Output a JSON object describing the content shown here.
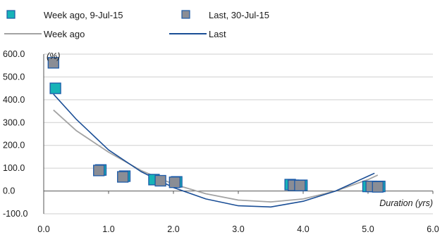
{
  "chart_data": {
    "type": "scatter",
    "title": "",
    "xlabel": "Duration (yrs)",
    "ylabel": "(%)",
    "xlim": [
      0,
      6
    ],
    "ylim": [
      -100,
      600
    ],
    "xticks": [
      0,
      1,
      2,
      3,
      4,
      5,
      6
    ],
    "xtick_labels": [
      "0.0",
      "1.0",
      "2.0",
      "3.0",
      "4.0",
      "5.0",
      "6.0"
    ],
    "yticks": [
      -100,
      0,
      100,
      200,
      300,
      400,
      500,
      600
    ],
    "ytick_labels": [
      "-100.0",
      "0.0",
      "100.0",
      "200.0",
      "300.0",
      "400.0",
      "500.0",
      "600.0"
    ],
    "grid": true,
    "legend_position": "top",
    "scatter_series": [
      {
        "name": "Week ago, 9-Jul-15",
        "color": "#16b3b8",
        "points": [
          {
            "x": 0.18,
            "y": 450
          },
          {
            "x": 0.88,
            "y": 92
          },
          {
            "x": 1.25,
            "y": 65
          },
          {
            "x": 1.7,
            "y": 50
          },
          {
            "x": 2.05,
            "y": 40
          },
          {
            "x": 3.8,
            "y": 28
          },
          {
            "x": 3.98,
            "y": 25
          },
          {
            "x": 5.0,
            "y": 20
          },
          {
            "x": 5.18,
            "y": 20
          }
        ]
      },
      {
        "name": "Last, 30-Jul-15",
        "color": "#8a8d95",
        "points": [
          {
            "x": 0.15,
            "y": 562
          },
          {
            "x": 0.85,
            "y": 90
          },
          {
            "x": 1.22,
            "y": 62
          },
          {
            "x": 1.8,
            "y": 45
          },
          {
            "x": 2.02,
            "y": 38
          },
          {
            "x": 3.85,
            "y": 25
          },
          {
            "x": 3.95,
            "y": 24
          },
          {
            "x": 5.05,
            "y": 20
          },
          {
            "x": 5.15,
            "y": 18
          }
        ]
      }
    ],
    "line_series": [
      {
        "name": "Week ago",
        "color": "#a3a3a3",
        "x": [
          0.15,
          0.5,
          1.0,
          1.5,
          2.0,
          2.5,
          3.0,
          3.5,
          4.0,
          4.5,
          5.0,
          5.15
        ],
        "y": [
          355,
          265,
          170,
          90,
          30,
          -12,
          -40,
          -48,
          -35,
          0,
          50,
          70
        ]
      },
      {
        "name": "Last",
        "color": "#1a4e96",
        "x": [
          0.15,
          0.5,
          1.0,
          1.5,
          2.0,
          2.5,
          3.0,
          3.5,
          4.0,
          4.5,
          5.0,
          5.1
        ],
        "y": [
          425,
          315,
          180,
          85,
          15,
          -35,
          -65,
          -70,
          -45,
          0,
          65,
          78
        ]
      }
    ]
  }
}
